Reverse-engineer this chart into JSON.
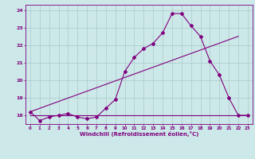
{
  "xlabel": "Windchill (Refroidissement éolien,°C)",
  "hours": [
    0,
    1,
    2,
    3,
    4,
    5,
    6,
    7,
    8,
    9,
    10,
    11,
    12,
    13,
    14,
    15,
    16,
    17,
    18,
    19,
    20,
    21,
    22,
    23
  ],
  "temp": [
    18.2,
    17.7,
    17.9,
    18.0,
    18.1,
    17.9,
    17.8,
    17.9,
    18.4,
    18.9,
    20.5,
    21.3,
    21.8,
    22.1,
    22.7,
    23.8,
    23.8,
    23.1,
    22.5,
    21.1,
    20.3,
    19.0,
    18.0,
    18.0
  ],
  "flat_line_x": [
    0,
    23
  ],
  "flat_line_y": [
    18.0,
    18.0
  ],
  "diag_line_x": [
    0,
    22
  ],
  "diag_line_y": [
    18.2,
    22.5
  ],
  "ylim": [
    17.5,
    24.3
  ],
  "xlim": [
    -0.5,
    23.5
  ],
  "bg_color": "#cce8e8",
  "line_color": "#800080",
  "grid_color": "#aacaca"
}
